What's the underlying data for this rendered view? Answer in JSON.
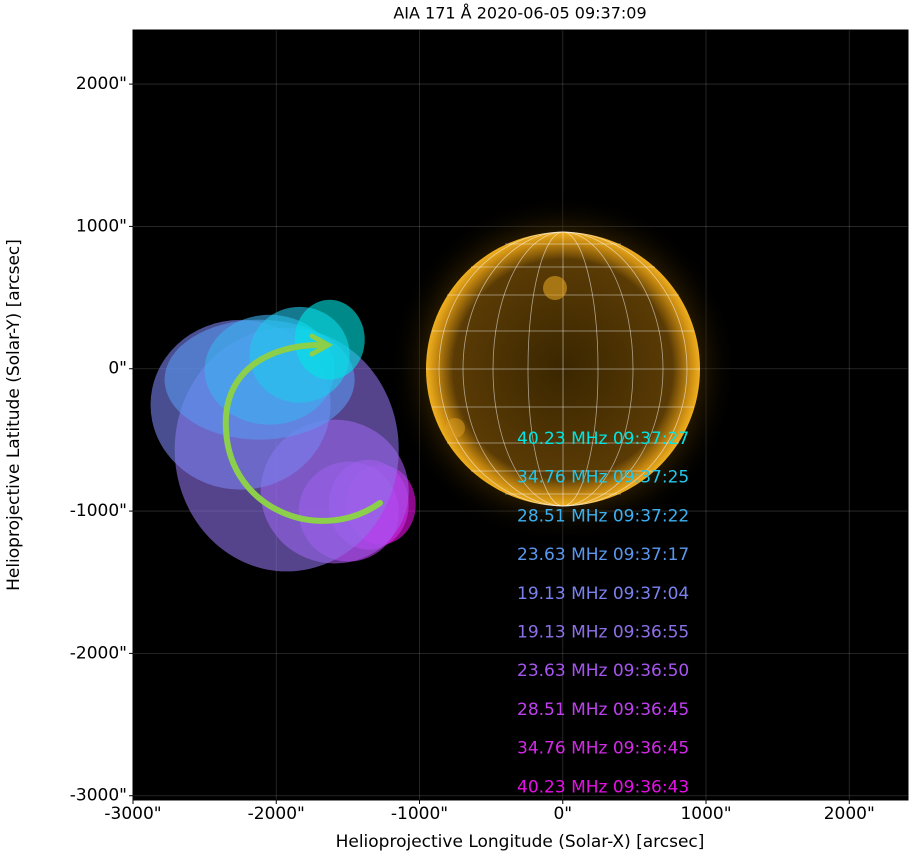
{
  "chart_data": {
    "type": "ellipse",
    "title": "AIA 171 Å 2020-06-05 09:37:09",
    "x_label": "Helioprojective Longitude (Solar-X) [arcsec]",
    "y_label": "Helioprojective Latitude (Solar-Y) [arcsec]",
    "xlim": [
      -3000,
      2410
    ],
    "ylim": [
      -3030,
      2380
    ],
    "xticks": [
      {
        "value": -3000,
        "label": "-3000\""
      },
      {
        "value": -2000,
        "label": "-2000\""
      },
      {
        "value": -1000,
        "label": "-1000\""
      },
      {
        "value": 0,
        "label": "0\""
      },
      {
        "value": 1000,
        "label": "1000\""
      },
      {
        "value": 2000,
        "label": "2000\""
      }
    ],
    "yticks": [
      {
        "value": -3000,
        "label": "-3000\""
      },
      {
        "value": -2000,
        "label": "-2000\""
      },
      {
        "value": -1000,
        "label": "-1000\""
      },
      {
        "value": 0,
        "label": "0\""
      },
      {
        "value": 1000,
        "label": "1000\""
      },
      {
        "value": 2000,
        "label": "2000\""
      }
    ],
    "grid": true,
    "series": [
      {
        "name": "40.23 MHz 09:37:27",
        "color": "#00e5e5",
        "x": [
          -1627
        ],
        "values": [
          204
        ],
        "width": [
          489
        ],
        "height": [
          561
        ]
      },
      {
        "name": "34.76 MHz 09:37:25",
        "color": "#22c8ec",
        "x": [
          -1837
        ],
        "values": [
          98
        ],
        "width": [
          698
        ],
        "height": [
          674
        ]
      },
      {
        "name": "28.51 MHz 09:37:22",
        "color": "#3cb0f0",
        "x": [
          -2046
        ],
        "values": [
          -7
        ],
        "width": [
          908
        ],
        "height": [
          772
        ]
      },
      {
        "name": "23.63 MHz 09:37:17",
        "color": "#5a98f0",
        "x": [
          -2116
        ],
        "values": [
          -77
        ],
        "width": [
          1327
        ],
        "height": [
          842
        ]
      },
      {
        "name": "19.13 MHz 09:37:04",
        "color": "#7a82f0",
        "x": [
          -2249
        ],
        "values": [
          -253
        ],
        "width": [
          1257
        ],
        "height": [
          1193
        ]
      },
      {
        "name": "19.13 MHz 09:36:55",
        "color": "#8d70e8",
        "x": [
          -1927
        ],
        "values": [
          -568
        ],
        "width": [
          1564
        ],
        "height": [
          1712
        ]
      },
      {
        "name": "23.63 MHz 09:36:50",
        "color": "#a755f0",
        "x": [
          -1592
        ],
        "values": [
          -863
        ],
        "width": [
          1034
        ],
        "height": [
          1011
        ]
      },
      {
        "name": "28.51 MHz 09:36:45",
        "color": "#c040f0",
        "x": [
          -1494
        ],
        "values": [
          -1004
        ],
        "width": [
          698
        ],
        "height": [
          702
        ]
      },
      {
        "name": "34.76 MHz 09:36:45",
        "color": "#d42ae8",
        "x": [
          -1355
        ],
        "values": [
          -955
        ],
        "width": [
          559
        ],
        "height": [
          632
        ]
      },
      {
        "name": "40.23 MHz 09:36:43",
        "color": "#e610e6",
        "x": [
          -1271
        ],
        "values": [
          -955
        ],
        "width": [
          489
        ],
        "height": [
          561
        ]
      }
    ]
  }
}
